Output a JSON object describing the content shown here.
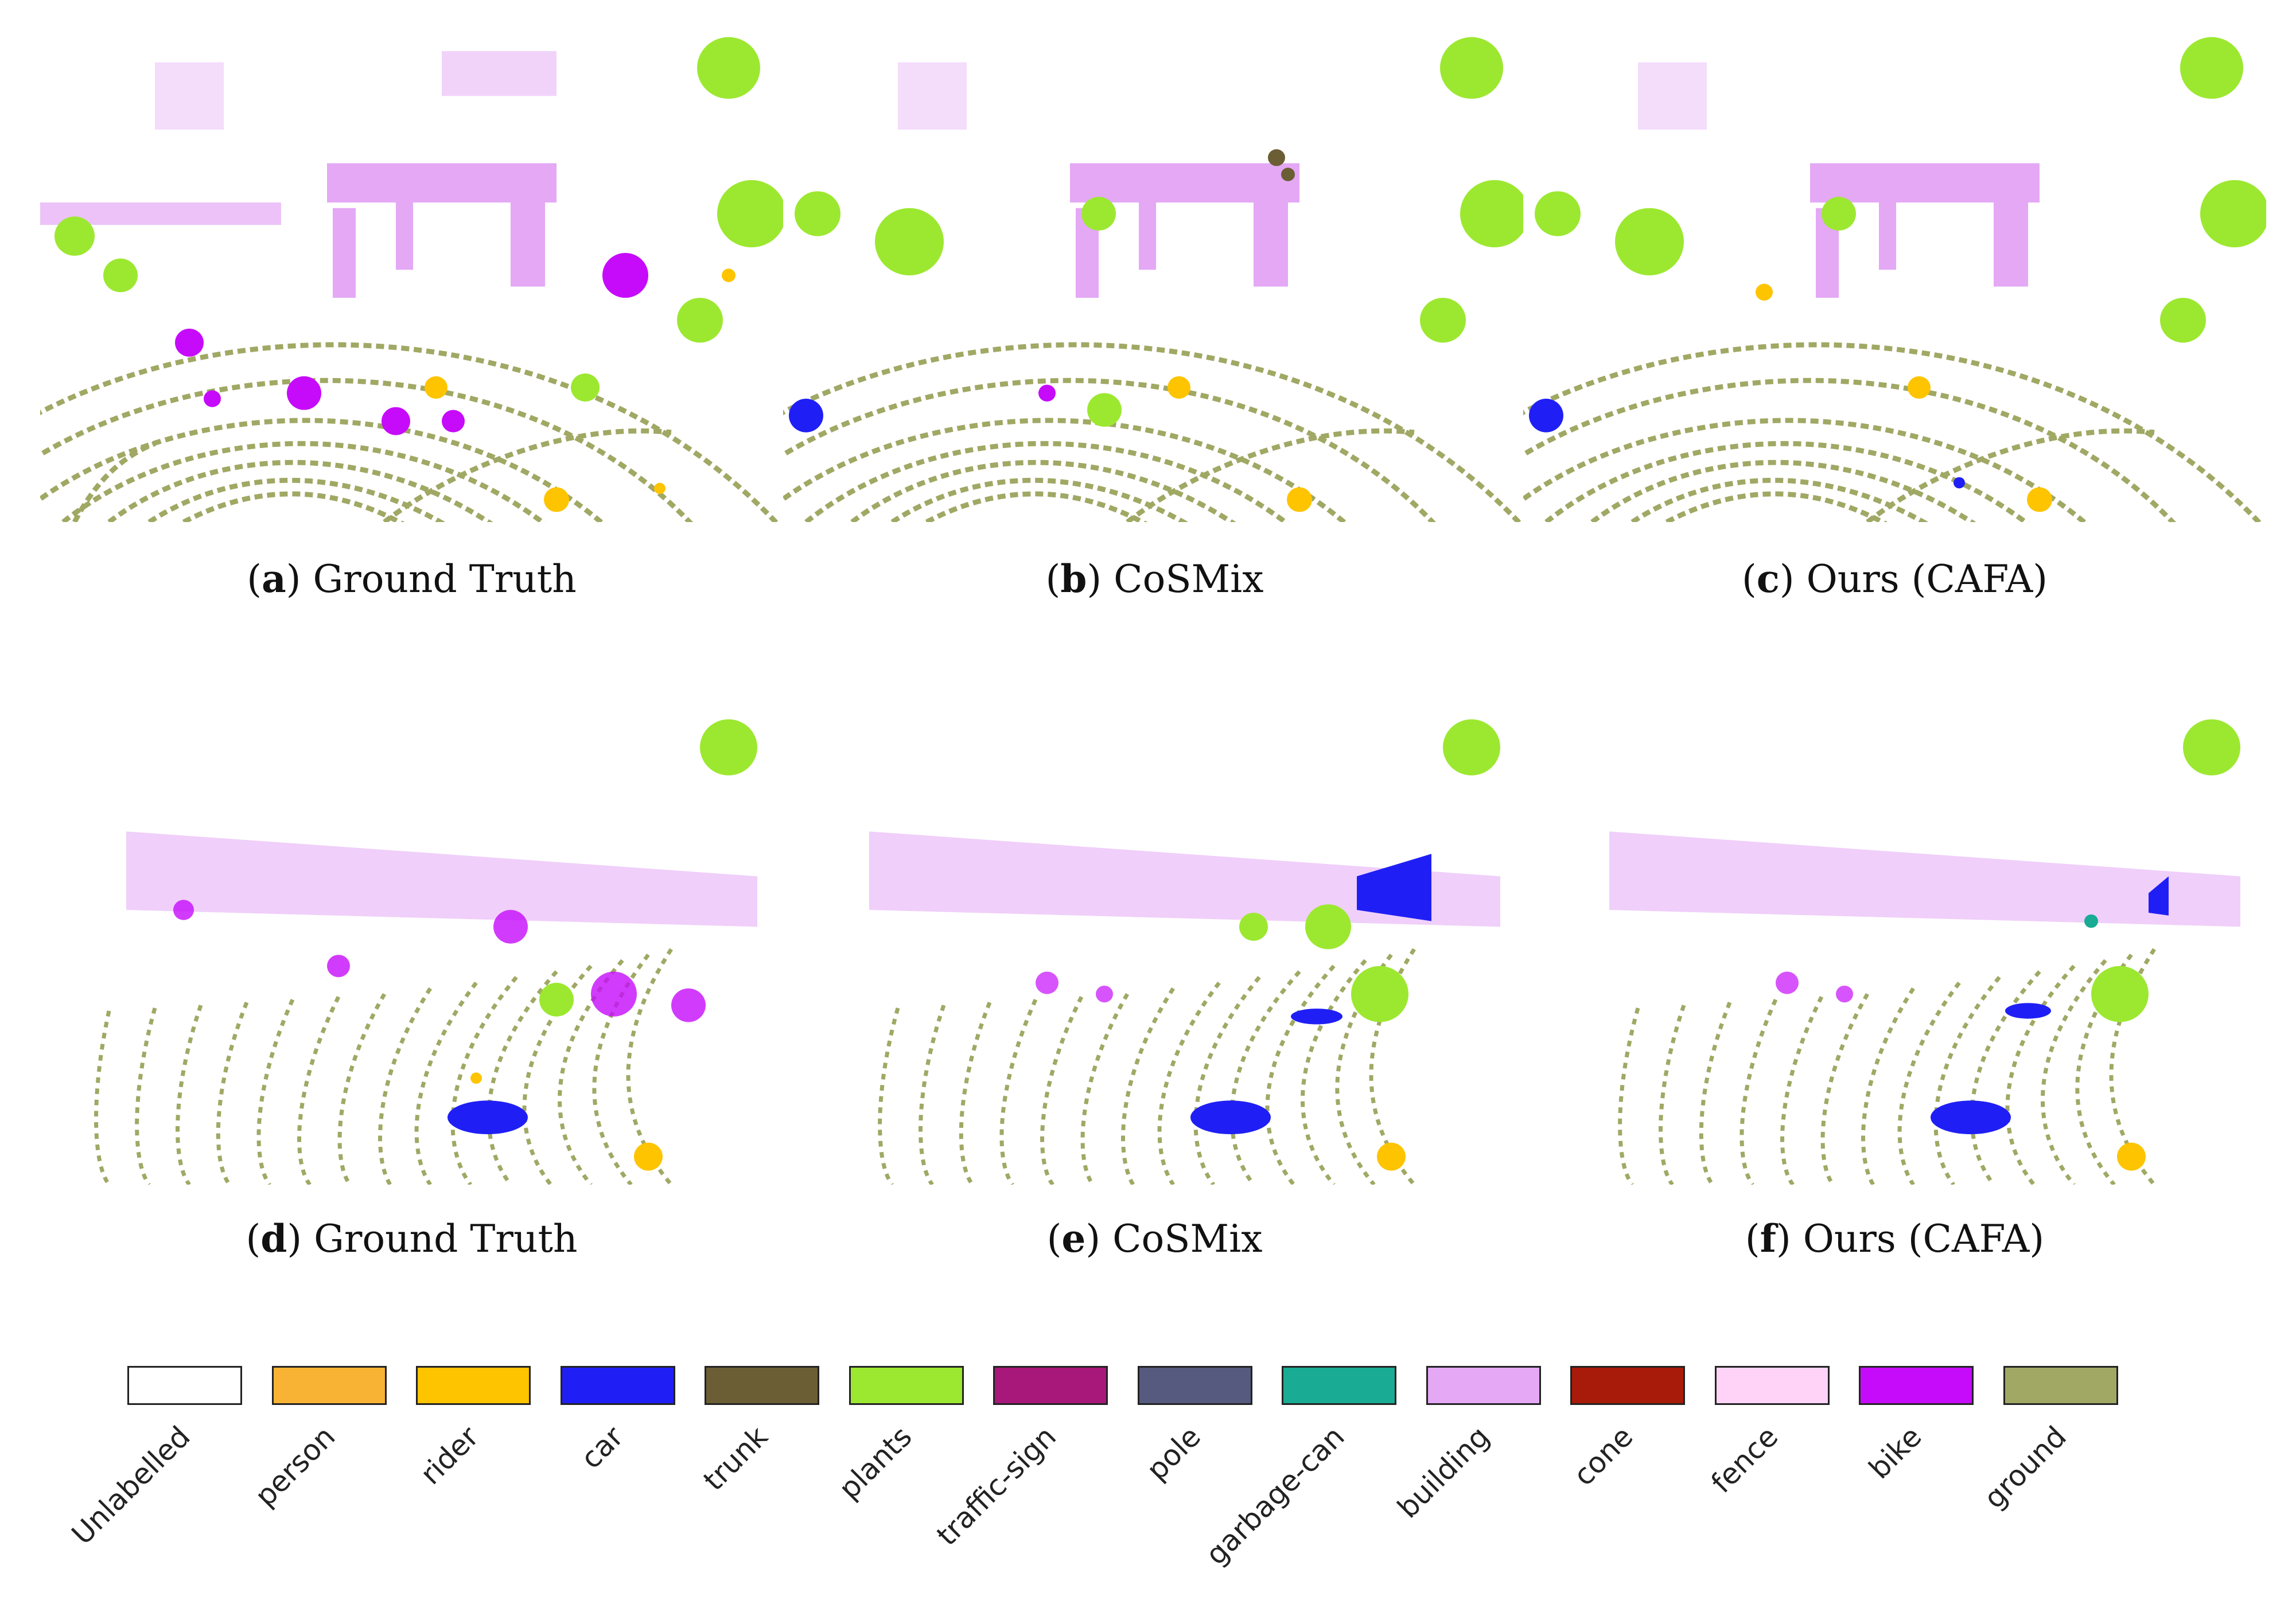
{
  "figure": {
    "panels": [
      {
        "id": "a",
        "title": "Ground Truth"
      },
      {
        "id": "b",
        "title": "CoSMix"
      },
      {
        "id": "c",
        "title": "Ours (CAFA)"
      },
      {
        "id": "d",
        "title": "Ground Truth"
      },
      {
        "id": "e",
        "title": "CoSMix"
      },
      {
        "id": "f",
        "title": "Ours (CAFA)"
      }
    ],
    "legend": [
      {
        "label": "Unlabelled",
        "color": "#ffffff"
      },
      {
        "label": "person",
        "color": "#f8b334"
      },
      {
        "label": "rider",
        "color": "#fec400"
      },
      {
        "label": "car",
        "color": "#1f1ff5"
      },
      {
        "label": "trunk",
        "color": "#6b5e34"
      },
      {
        "label": "plants",
        "color": "#9ce830"
      },
      {
        "label": "traffic-sign",
        "color": "#a8177a"
      },
      {
        "label": "pole",
        "color": "#555a7e"
      },
      {
        "label": "garbage-can",
        "color": "#19ab93"
      },
      {
        "label": "building",
        "color": "#e4a8f5"
      },
      {
        "label": "cone",
        "color": "#a81a09"
      },
      {
        "label": "fence",
        "color": "#ffd3f8"
      },
      {
        "label": "bike",
        "color": "#c60bfb"
      },
      {
        "label": "ground",
        "color": "#a0a864"
      }
    ]
  }
}
